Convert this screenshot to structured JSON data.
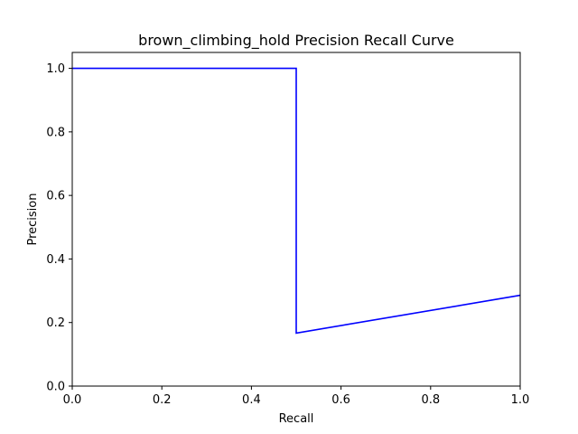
{
  "chart_data": {
    "type": "line",
    "title": "brown_climbing_hold Precision Recall Curve",
    "xlabel": "Recall",
    "ylabel": "Precision",
    "xlim": [
      0.0,
      1.0
    ],
    "ylim": [
      0.0,
      1.05
    ],
    "xticks": [
      0.0,
      0.2,
      0.4,
      0.6,
      0.8,
      1.0
    ],
    "xtick_labels": [
      "0.0",
      "0.2",
      "0.4",
      "0.6",
      "0.8",
      "1.0"
    ],
    "yticks": [
      0.0,
      0.2,
      0.4,
      0.6,
      0.8,
      1.0
    ],
    "ytick_labels": [
      "0.0",
      "0.2",
      "0.4",
      "0.6",
      "0.8",
      "1.0"
    ],
    "grid": false,
    "series": [
      {
        "color": "#0000ff",
        "x": [
          0.0,
          0.5,
          0.5,
          1.0
        ],
        "y": [
          1.0,
          1.0,
          0.1667,
          0.2857
        ]
      }
    ]
  }
}
